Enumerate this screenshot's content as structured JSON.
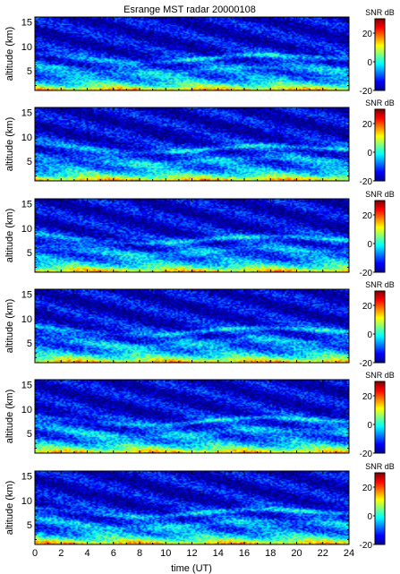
{
  "chart_data": {
    "type": "heatmap",
    "title": "Esrange MST radar 20000108",
    "xlabel": "time (UT)",
    "ylabel": "altitude (km)",
    "xlim": [
      0,
      24
    ],
    "ylim": [
      1,
      16
    ],
    "xticks": [
      "0",
      "2",
      "4",
      "6",
      "8",
      "10",
      "12",
      "14",
      "16",
      "18",
      "20",
      "22",
      "24"
    ],
    "yticks": [
      "5",
      "10",
      "15"
    ],
    "colorbar": {
      "label": "SNR dB",
      "range": [
        -20,
        30
      ],
      "ticks": [
        "20",
        "0",
        "-20"
      ]
    },
    "panels": [
      {
        "name": "",
        "tropopause_km": [
          8.6,
          8.0,
          7.4,
          7.0,
          6.7,
          6.9,
          7.3,
          7.8,
          8.2,
          8.3,
          8.0,
          7.7,
          7.5
        ]
      },
      {
        "name": "",
        "tropopause_km": [
          8.8,
          8.2,
          7.6,
          7.1,
          6.8,
          6.9,
          7.2,
          7.7,
          8.1,
          8.3,
          8.0,
          7.6,
          7.4
        ]
      },
      {
        "name": "",
        "tropopause_km": [
          8.9,
          8.3,
          7.7,
          7.2,
          6.9,
          7.0,
          7.4,
          7.9,
          8.2,
          8.4,
          8.1,
          7.8,
          7.5
        ]
      },
      {
        "name": "",
        "tropopause_km": [
          8.5,
          7.9,
          7.3,
          6.9,
          6.6,
          6.8,
          7.2,
          7.7,
          8.1,
          8.2,
          7.9,
          7.6,
          7.4
        ]
      },
      {
        "name": "",
        "tropopause_km": [
          8.7,
          8.1,
          7.5,
          7.0,
          6.7,
          6.8,
          7.2,
          7.8,
          8.2,
          8.3,
          8.0,
          7.7,
          7.5
        ]
      },
      {
        "name": "",
        "tropopause_km": [
          8.6,
          8.0,
          7.4,
          7.0,
          6.6,
          6.8,
          7.3,
          7.8,
          8.1,
          8.2,
          7.9,
          7.6,
          7.4
        ]
      }
    ]
  }
}
